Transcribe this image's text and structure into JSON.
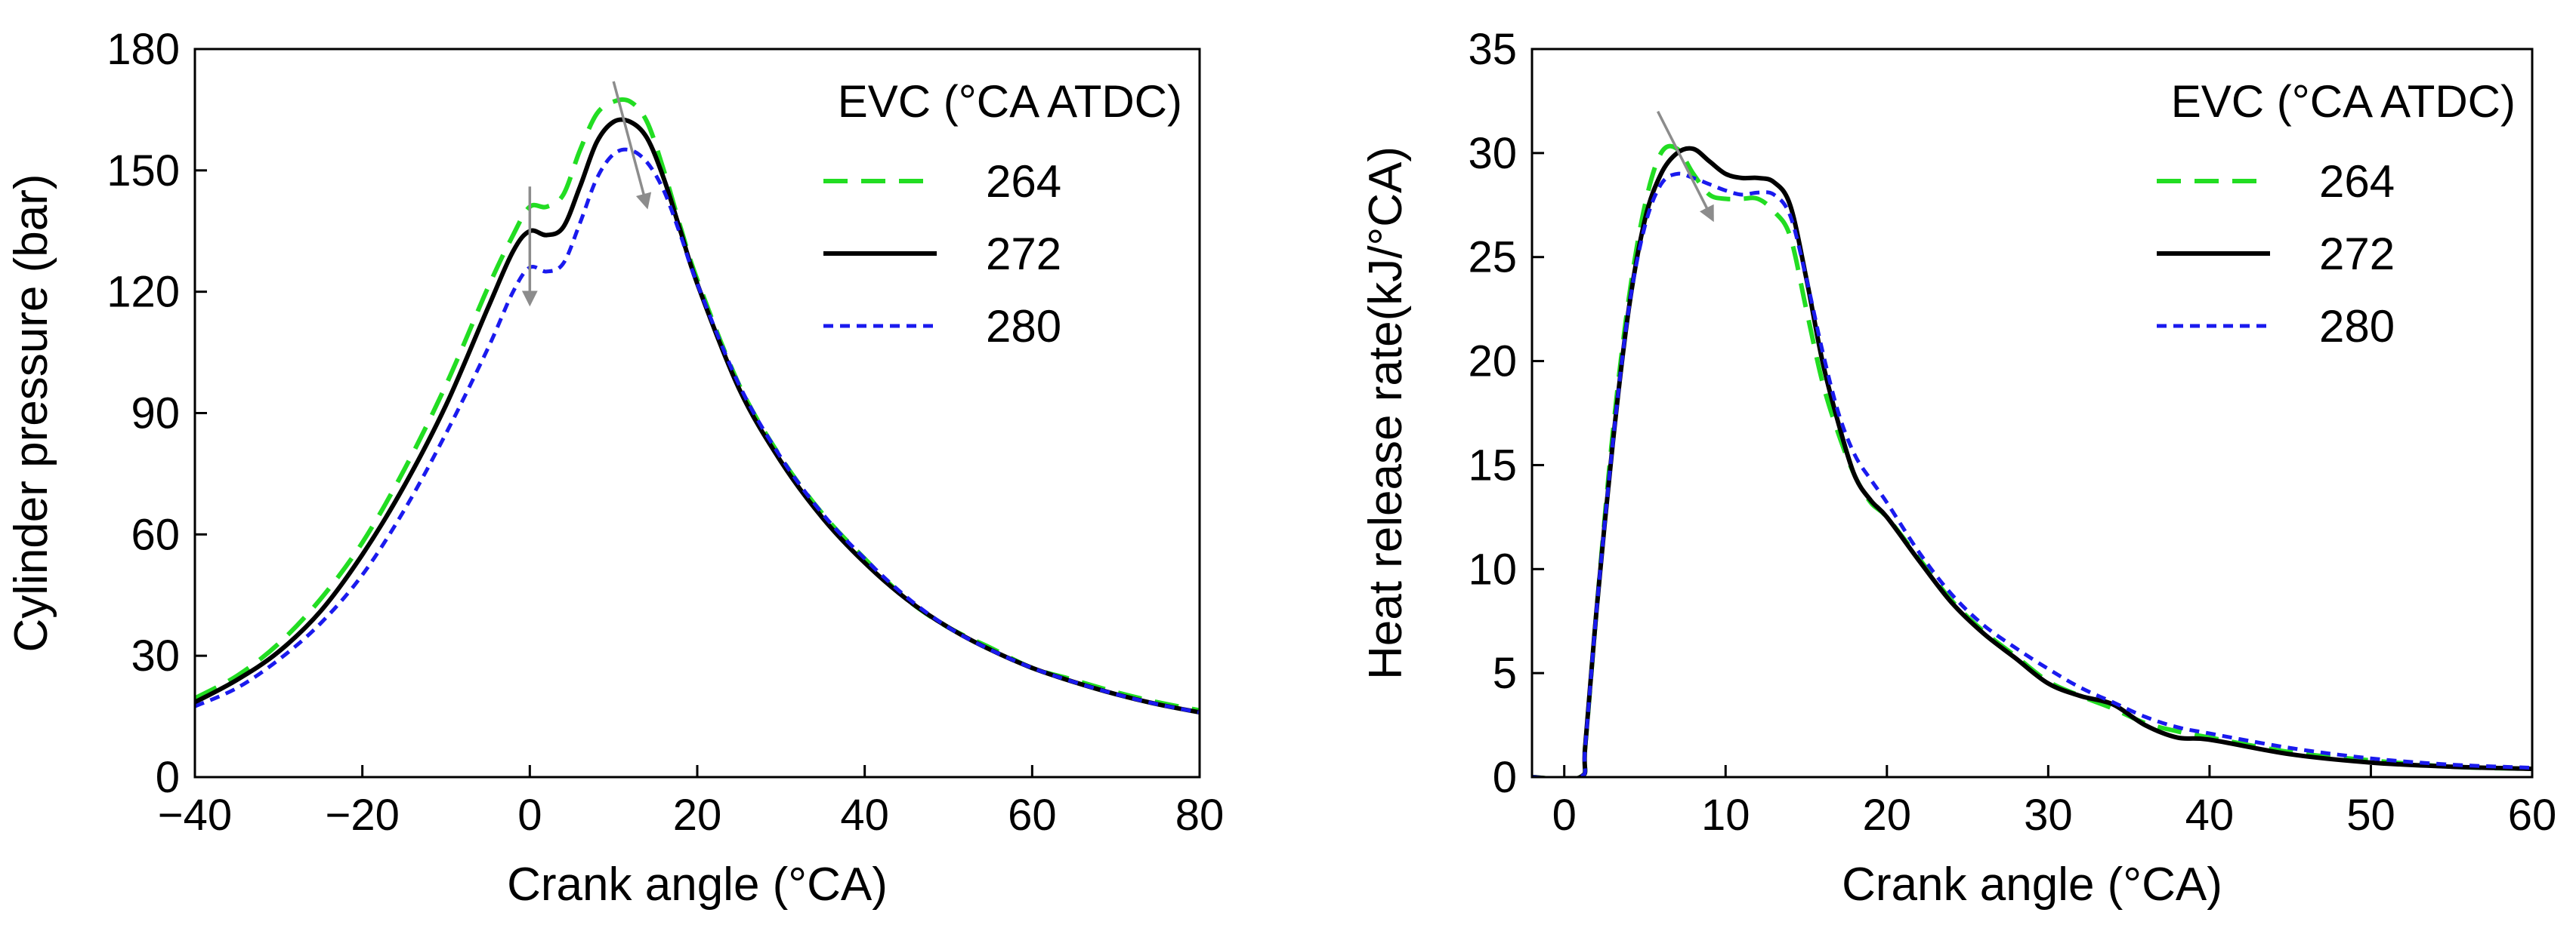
{
  "figure": {
    "charts": [
      {
        "title": "",
        "xlabel": "Crank angle (°CA)",
        "ylabel": "Cylinder pressure (bar)",
        "legend_title": "EVC (°CA ATDC)"
      },
      {
        "title": "",
        "xlabel": "Crank angle (°CA)",
        "ylabel": "Heat release rate(kJ/°CA)",
        "legend_title": "EVC (°CA ATDC)"
      }
    ]
  },
  "colors": {
    "s264": "#22dd22",
    "s272": "#000000",
    "s280": "#1a1aee",
    "arrow": "#8c8c8c"
  },
  "chart_data": [
    {
      "type": "line",
      "title": "",
      "xlabel": "Crank angle (°CA)",
      "ylabel": "Cylinder pressure (bar)",
      "xlim": [
        -40,
        80
      ],
      "ylim": [
        0,
        180
      ],
      "xticks": [
        -40,
        -20,
        0,
        20,
        40,
        60,
        80
      ],
      "xtick_labels": [
        "−40",
        "−20",
        "0",
        "20",
        "40",
        "60",
        "80"
      ],
      "yticks": [
        0,
        30,
        60,
        90,
        120,
        150,
        180
      ],
      "ytick_labels": [
        "0",
        "30",
        "60",
        "90",
        "120",
        "150",
        "180"
      ],
      "legend": {
        "title": "EVC (°CA ATDC)",
        "position": "top-right"
      },
      "grid": false,
      "annotations": [
        {
          "type": "arrow",
          "from": [
            0,
            146
          ],
          "to": [
            0,
            117
          ]
        },
        {
          "type": "arrow",
          "from": [
            10,
            172
          ],
          "to": [
            14,
            141
          ]
        }
      ],
      "series": [
        {
          "name": "264",
          "style": "dashed-green",
          "x": [
            -40,
            -35,
            -30,
            -25,
            -20,
            -15,
            -10,
            -5,
            -2,
            0,
            2,
            4,
            6,
            8,
            10,
            12,
            14,
            16,
            18,
            20,
            25,
            30,
            35,
            40,
            45,
            50,
            55,
            60,
            65,
            70,
            75,
            80
          ],
          "y": [
            19.5,
            25,
            33,
            44,
            58,
            76,
            97,
            121,
            134,
            141,
            141,
            144,
            155,
            164,
            167,
            167,
            162,
            150,
            136,
            123,
            97,
            79,
            65,
            54,
            44,
            37,
            32,
            27,
            24,
            21,
            18.5,
            16.5
          ]
        },
        {
          "name": "272",
          "style": "solid-black",
          "x": [
            -40,
            -35,
            -30,
            -25,
            -20,
            -15,
            -10,
            -5,
            -2,
            0,
            2,
            4,
            6,
            8,
            10,
            12,
            14,
            16,
            18,
            20,
            25,
            30,
            35,
            40,
            45,
            50,
            55,
            60,
            65,
            70,
            75,
            80
          ],
          "y": [
            18.5,
            24,
            31,
            41,
            55,
            72,
            92,
            116,
            130,
            135,
            134,
            136,
            146,
            157,
            162,
            162,
            158,
            148,
            135,
            122,
            96,
            78,
            64,
            53,
            44,
            37,
            31.5,
            27,
            23.5,
            20.5,
            18,
            16
          ]
        },
        {
          "name": "280",
          "style": "dotted-blue",
          "x": [
            -40,
            -35,
            -30,
            -25,
            -20,
            -15,
            -10,
            -5,
            -2,
            0,
            2,
            4,
            6,
            8,
            10,
            12,
            14,
            16,
            18,
            20,
            25,
            30,
            35,
            40,
            45,
            50,
            55,
            60,
            65,
            70,
            75,
            80
          ],
          "y": [
            17.5,
            22,
            29,
            38,
            50,
            66,
            85,
            106,
            120,
            126,
            125,
            127,
            137,
            148,
            154,
            155,
            152,
            145,
            134,
            122,
            97,
            79,
            65,
            54,
            44.5,
            37,
            31.5,
            27,
            23.5,
            20.5,
            18,
            16
          ]
        }
      ]
    },
    {
      "type": "line",
      "title": "",
      "xlabel": "Crank angle (°CA)",
      "ylabel": "Heat release rate(kJ/°CA)",
      "xlim": [
        -2,
        60
      ],
      "ylim": [
        0,
        35
      ],
      "xticks": [
        0,
        10,
        20,
        30,
        40,
        50,
        60
      ],
      "xtick_labels": [
        "0",
        "10",
        "20",
        "30",
        "40",
        "50",
        "60"
      ],
      "yticks": [
        0,
        5,
        10,
        15,
        20,
        25,
        30,
        35
      ],
      "ytick_labels": [
        "0",
        "5",
        "10",
        "15",
        "20",
        "25",
        "30",
        "35"
      ],
      "legend": {
        "title": "EVC (°CA ATDC)",
        "position": "top-right"
      },
      "grid": false,
      "annotations": [
        {
          "type": "arrow",
          "from": [
            5.8,
            32
          ],
          "to": [
            9.2,
            26.8
          ]
        }
      ],
      "series": [
        {
          "name": "264",
          "style": "dashed-green",
          "x": [
            -2,
            1,
            1.3,
            2,
            3,
            4,
            5,
            6,
            7,
            8,
            9,
            10,
            11,
            12,
            13,
            14,
            15,
            16,
            17,
            18,
            19,
            20,
            22,
            24,
            26,
            28,
            30,
            32,
            34,
            36,
            38,
            40,
            45,
            50,
            55,
            60
          ],
          "y": [
            0,
            0,
            1.5,
            8,
            16.5,
            23,
            27.5,
            30,
            30.2,
            29,
            28,
            27.8,
            27.8,
            27.8,
            27.2,
            26,
            22.5,
            19,
            16.5,
            14.5,
            13.2,
            12.5,
            10.5,
            8.5,
            7,
            5.8,
            4.6,
            3.9,
            3.3,
            2.6,
            2.2,
            1.9,
            1.2,
            0.8,
            0.5,
            0.4
          ]
        },
        {
          "name": "272",
          "style": "solid-black",
          "x": [
            -2,
            1,
            1.3,
            2,
            3,
            4,
            5,
            6,
            7,
            8,
            9,
            10,
            11,
            12,
            13,
            14,
            15,
            16,
            17,
            18,
            19,
            20,
            22,
            24,
            26,
            28,
            30,
            32,
            34,
            36,
            38,
            40,
            45,
            50,
            55,
            60
          ],
          "y": [
            0,
            0,
            1.5,
            8,
            16,
            22.5,
            26.8,
            29,
            30,
            30.2,
            29.6,
            29,
            28.8,
            28.8,
            28.6,
            27.5,
            24,
            20,
            17,
            14.5,
            13.3,
            12.5,
            10.4,
            8.4,
            6.9,
            5.7,
            4.5,
            3.9,
            3.5,
            2.5,
            1.9,
            1.8,
            1.1,
            0.7,
            0.5,
            0.4
          ]
        },
        {
          "name": "280",
          "style": "dotted-blue",
          "x": [
            -2,
            1,
            1.3,
            2,
            3,
            4,
            5,
            6,
            7,
            8,
            9,
            10,
            11,
            12,
            13,
            14,
            15,
            16,
            17,
            18,
            19,
            20,
            22,
            24,
            26,
            28,
            30,
            32,
            34,
            36,
            38,
            40,
            45,
            50,
            55,
            60
          ],
          "y": [
            0,
            0,
            1.5,
            8,
            16,
            22.5,
            26.5,
            28.5,
            29,
            28.8,
            28.5,
            28.2,
            28,
            28.1,
            28,
            27,
            24,
            20.5,
            17.5,
            15.5,
            14.3,
            13.2,
            10.8,
            8.8,
            7.3,
            6.2,
            5.2,
            4.3,
            3.6,
            2.9,
            2.4,
            2.1,
            1.4,
            0.9,
            0.6,
            0.45
          ]
        }
      ]
    }
  ]
}
